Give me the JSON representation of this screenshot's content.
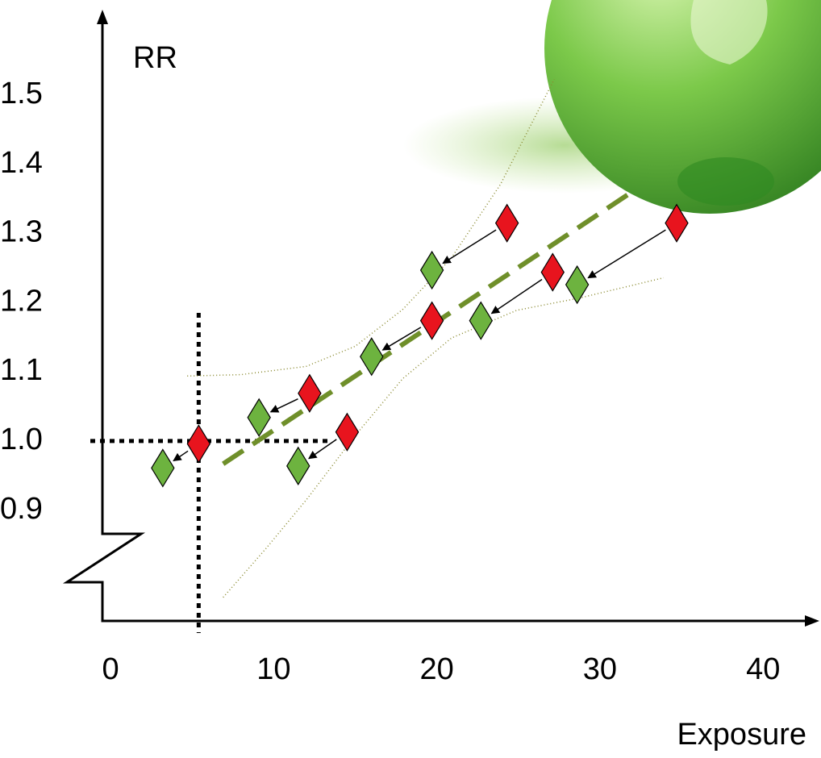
{
  "chart_data": {
    "type": "scatter",
    "ylabel": "RR",
    "xlabel": "Exposure",
    "xlim": [
      -0.5,
      43.4
    ],
    "ylim": [
      0.74,
      1.62
    ],
    "xticks": [
      0,
      10,
      20,
      30,
      40
    ],
    "yticks": [
      0.9,
      {
        "value": 1,
        "label": "1.0"
      },
      1.1,
      1.2,
      1.3,
      1.4,
      1.5
    ],
    "reference_lines": {
      "x": 5.4,
      "y": 1
    },
    "arrows": {
      "from": 0,
      "to": 1
    },
    "series": [
      {
        "style": "marker",
        "color": "#e8141e",
        "x": [
          24.3,
          34.7,
          27.1,
          19.7,
          12.2,
          14.5,
          5.4
        ],
        "values": [
          1.315,
          1.315,
          1.244,
          1.174,
          1.069,
          1.013,
          0.996
        ]
      },
      {
        "style": "marker",
        "color": "#6db33f",
        "x": [
          19.7,
          28.6,
          22.7,
          16.0,
          9.1,
          11.5,
          3.2
        ],
        "values": [
          1.247,
          1.226,
          1.174,
          1.122,
          1.034,
          0.964,
          0.961
        ]
      },
      {
        "style": "dashed",
        "color": "#6f8f2a",
        "x": [
          6.9,
          31.7
        ],
        "values": [
          0.967,
          1.356
        ]
      },
      {
        "style": "dotted",
        "color": "#8a8a30",
        "x": [
          4.7,
          8.0,
          12,
          15,
          17.9,
          20.9,
          23.9,
          27.2
        ],
        "values": [
          1.094,
          1.096,
          1.108,
          1.137,
          1.19,
          1.265,
          1.371,
          1.523
        ]
      },
      {
        "style": "dotted",
        "color": "#8a8a30",
        "x": [
          6.9,
          9.5,
          12,
          15,
          17.9,
          20.9,
          24.9,
          28.8,
          33.9
        ],
        "values": [
          0.774,
          0.844,
          0.915,
          1.008,
          1.09,
          1.149,
          1.189,
          1.207,
          1.236
        ]
      }
    ]
  }
}
